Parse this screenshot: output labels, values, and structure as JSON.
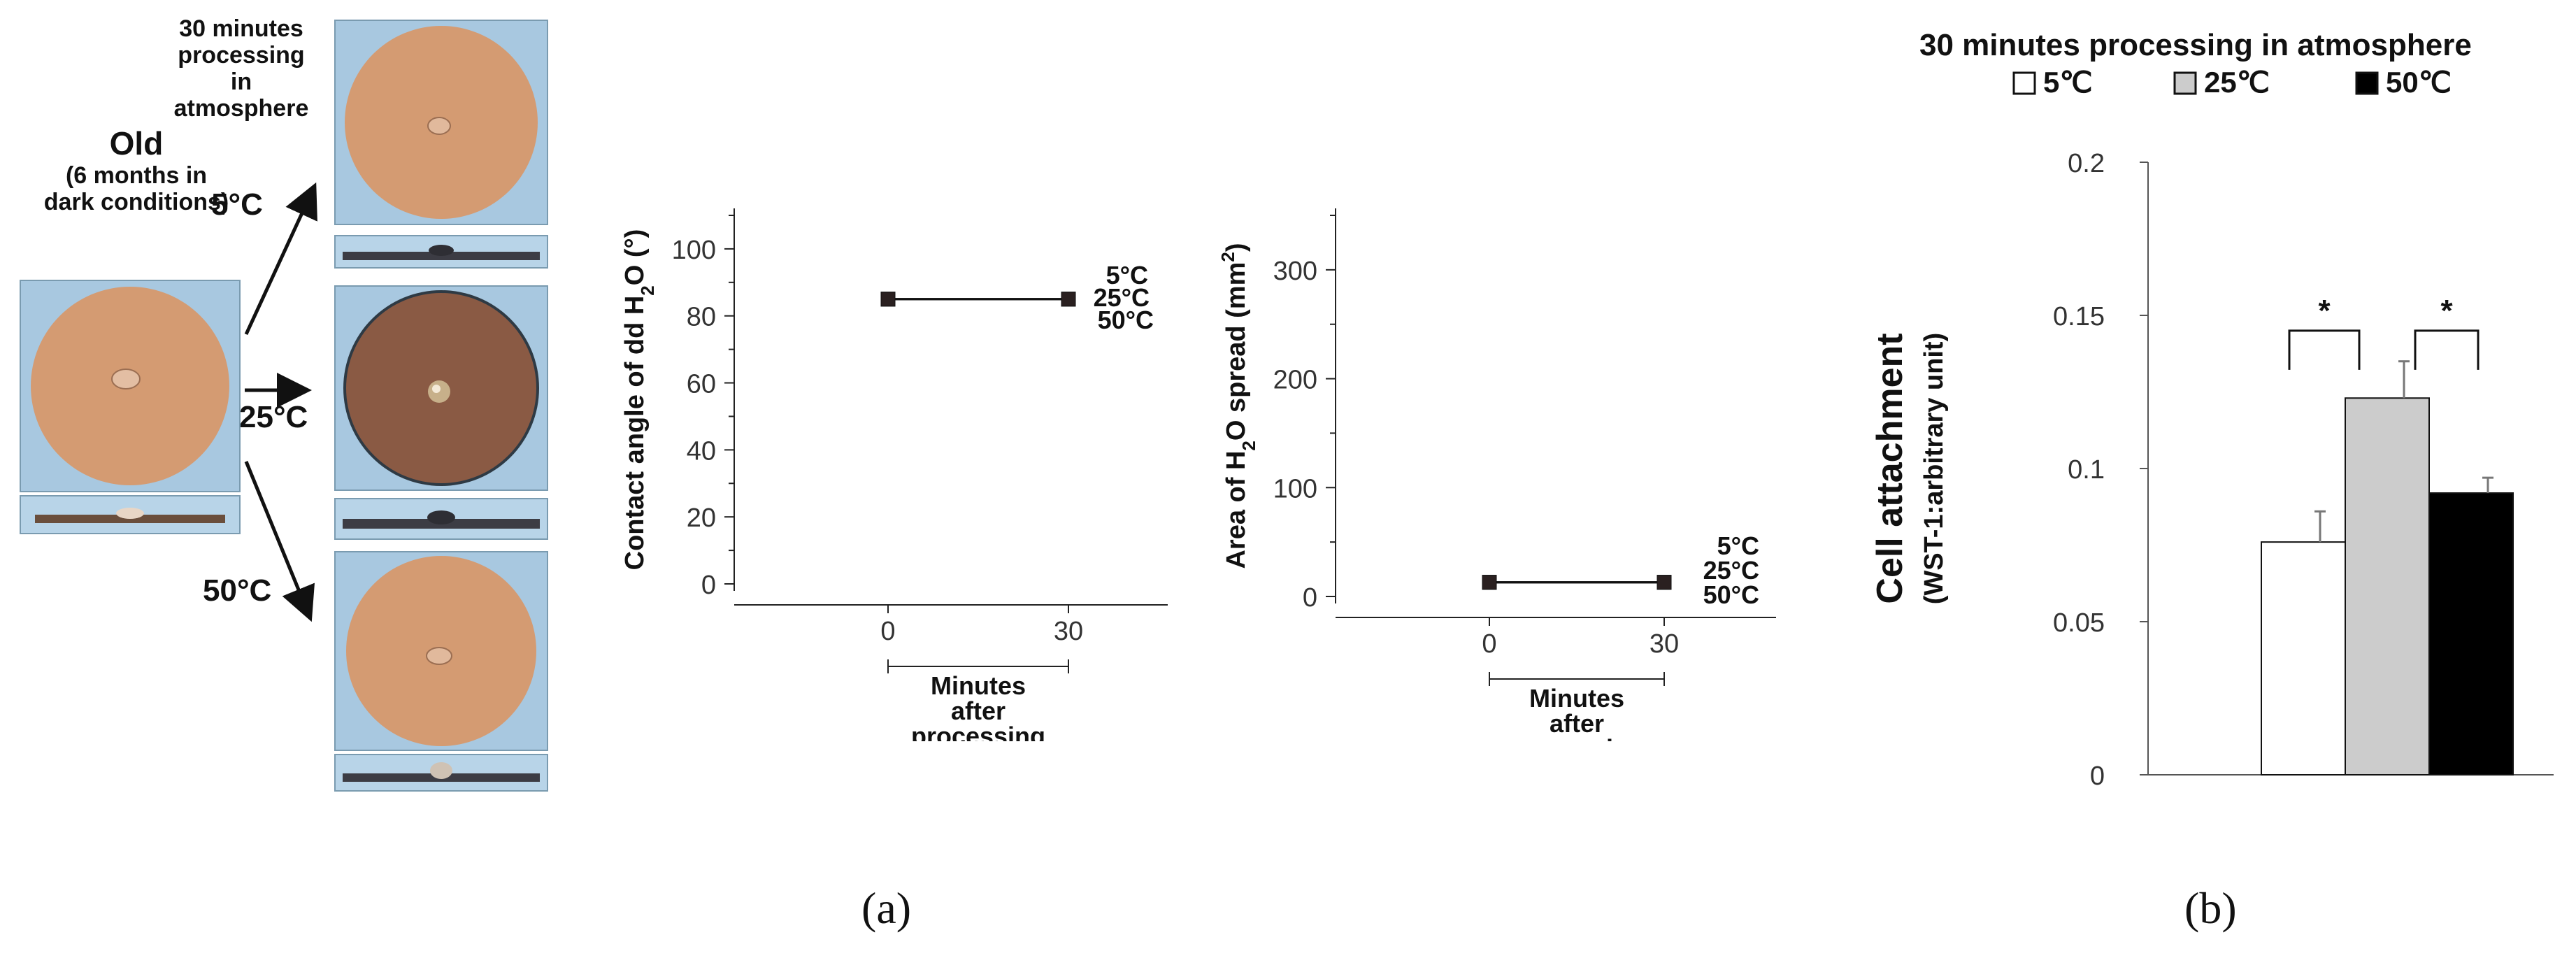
{
  "panel_a": {
    "caption": "(a)",
    "old_label": "Old",
    "old_sub_lines": [
      "(6 months in",
      "dark conditions)"
    ],
    "top_label_lines": [
      "30 minutes",
      "processing",
      "in",
      "atmosphere"
    ],
    "temp_5": "5°C",
    "temp_25": "25°C",
    "temp_50": "50°C",
    "disc_color": "#d49b72",
    "dark_disc_color": "#8a5a44"
  },
  "panel_b": {
    "caption": "(b)",
    "title": "30 minutes processing in atmosphere",
    "legend": [
      "5℃",
      "25℃",
      "50℃"
    ],
    "ylabel_main": "Cell attachment",
    "ylabel_sub": "(WST-1:arbitrary unit)",
    "significance": [
      "*",
      "*"
    ]
  },
  "chart_data": [
    {
      "type": "line",
      "ylabel": "Contact angle of dd H2O (°)",
      "xlabel": [
        "Minutes",
        "after",
        "processing"
      ],
      "x": [
        0,
        30
      ],
      "yticks": [
        0,
        20,
        40,
        60,
        80,
        100
      ],
      "ylim": [
        0,
        110
      ],
      "series": [
        {
          "name": "5°C",
          "values": [
            85,
            85
          ]
        },
        {
          "name": "25°C",
          "values": [
            85,
            85
          ]
        },
        {
          "name": "50°C",
          "values": [
            85,
            85
          ]
        }
      ]
    },
    {
      "type": "line",
      "ylabel": "Area of H2O spread (mm2)",
      "xlabel": [
        "Minutes",
        "after",
        "processing"
      ],
      "x": [
        0,
        30
      ],
      "yticks": [
        0,
        100,
        200,
        300
      ],
      "ylim": [
        0,
        350
      ],
      "series": [
        {
          "name": "5°C",
          "values": [
            13,
            13
          ]
        },
        {
          "name": "25°C",
          "values": [
            13,
            13
          ]
        },
        {
          "name": "50°C",
          "values": [
            13,
            13
          ]
        }
      ]
    },
    {
      "type": "bar",
      "title": "30 minutes processing in atmosphere",
      "ylabel": "Cell attachment (WST-1:arbitrary unit)",
      "categories": [
        "5℃",
        "25℃",
        "50℃"
      ],
      "values": [
        0.076,
        0.123,
        0.092
      ],
      "errors": [
        0.01,
        0.012,
        0.005
      ],
      "colors": [
        "#ffffff",
        "#cccccc",
        "#000000"
      ],
      "ylim": [
        0,
        0.2
      ],
      "yticks": [
        "0",
        "0.05",
        "0.1",
        "0.15",
        "0.2"
      ]
    }
  ]
}
